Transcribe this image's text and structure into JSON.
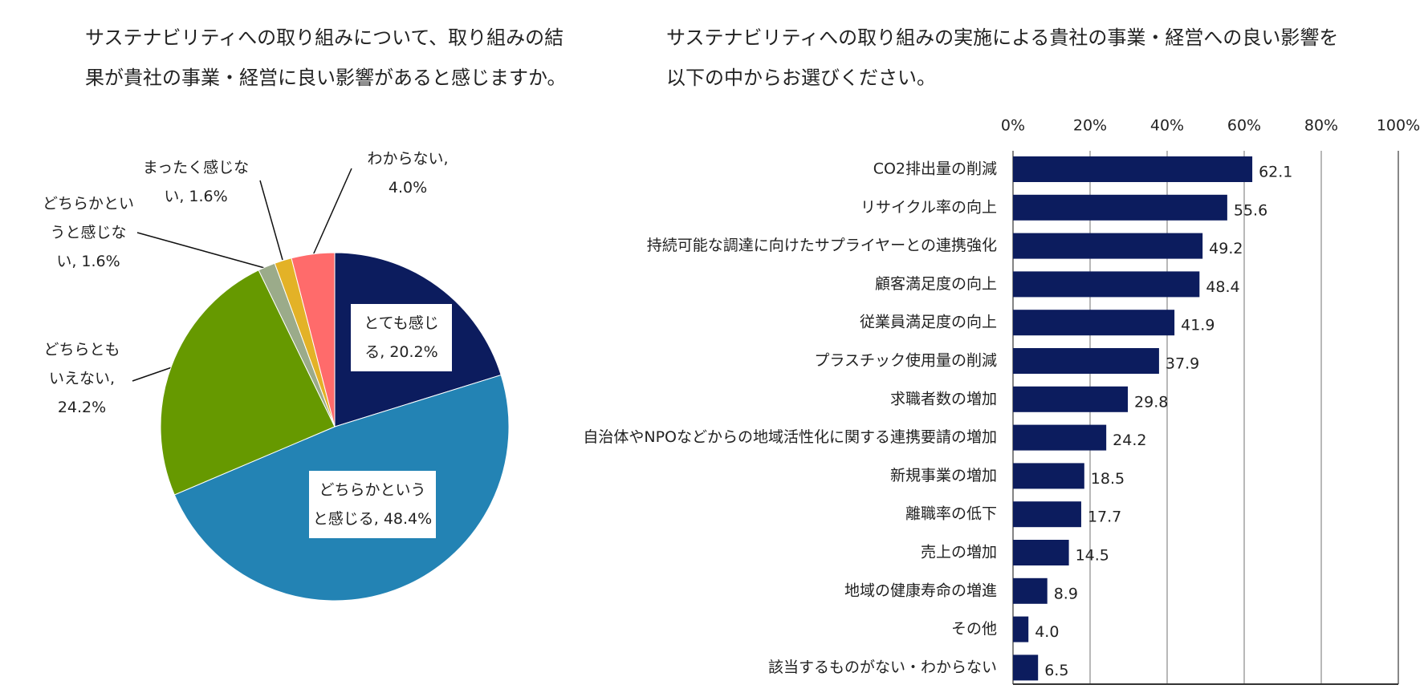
{
  "chart_data": [
    {
      "type": "pie",
      "title": "サステナビリティへの取り組みについて、取り組みの結果が貴社の事業・経営に良い影響があると感じますか。",
      "values": [
        20.2,
        48.4,
        24.2,
        1.6,
        1.6,
        4.0
      ],
      "value_labels": [
        "とても感じる, 20.2%",
        "どちらかというと感じる, 48.4%",
        "どちらともいえない, 24.2%",
        "どちらかというと感じない, 1.6%",
        "まったく感じない, 1.6%",
        "わからない, 4.0%"
      ],
      "colors": [
        "#0c1c5e",
        "#2383b4",
        "#669900",
        "#9bab8a",
        "#e3b227",
        "#ff6b6b"
      ]
    },
    {
      "type": "hbar",
      "title": "サステナビリティへの取り組みの実施による貴社の事業・経営への良い影響を以下の中からお選びください。",
      "categories": [
        "CO2排出量の削減",
        "リサイクル率の向上",
        "持続可能な調達に向けたサプライヤーとの連携強化",
        "顧客満足度の向上",
        "従業員満足度の向上",
        "プラスチック使用量の削減",
        "求職者数の増加",
        "自治体やNPOなどからの地域活性化に関する連携要請の増加",
        "新規事業の増加",
        "離職率の低下",
        "売上の増加",
        "地域の健康寿命の増進",
        "その他",
        "該当するものがない・わからない"
      ],
      "values": [
        62.1,
        55.6,
        49.2,
        48.4,
        41.9,
        37.9,
        29.8,
        24.2,
        18.5,
        17.7,
        14.5,
        8.9,
        4.0,
        6.5
      ],
      "value_labels": [
        "62.1",
        "55.6",
        "49.2",
        "48.4",
        "41.9",
        "37.9",
        "29.8",
        "24.2",
        "18.5",
        "17.7",
        "14.5",
        "8.9",
        "4.0",
        "6.5"
      ],
      "color": "#0c1c5e",
      "xlim": [
        0,
        100
      ],
      "xticks": [
        {
          "value": 0,
          "label": "0%"
        },
        {
          "value": 20,
          "label": "20%"
        },
        {
          "value": 40,
          "label": "40%"
        },
        {
          "value": 60,
          "label": "60%"
        },
        {
          "value": 80,
          "label": "80%"
        },
        {
          "value": 100,
          "label": "100%"
        }
      ],
      "grid": true
    }
  ]
}
